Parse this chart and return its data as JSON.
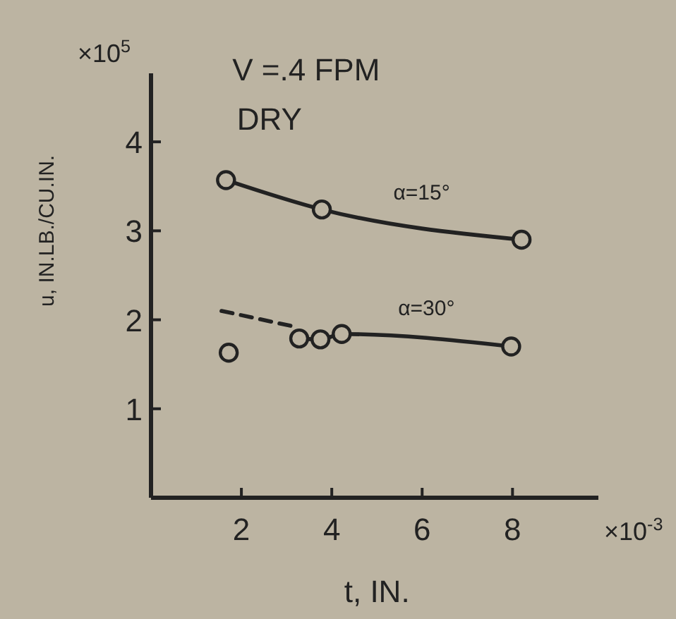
{
  "chart_data": {
    "type": "line",
    "title": "V =.4 FPM",
    "subtitle": "DRY",
    "xlabel": "t, IN.",
    "ylabel": "u, IN.LB./CU.IN.",
    "annotations": [
      "×10$^{5}$",
      "×10$^{-3}$"
    ],
    "xlim": [
      0,
      9.9
    ],
    "ylim": [
      0,
      4.77
    ],
    "xticks": [
      2,
      4,
      6,
      8
    ],
    "yticks": [
      1,
      2,
      3,
      4
    ],
    "grid": false,
    "series": [
      {
        "name": "α=15°",
        "color": "#222222",
        "x": [
          1.66,
          3.78,
          8.2
        ],
        "values": [
          3.57,
          3.24,
          2.9
        ],
        "marker": "circle",
        "line_style": "solid"
      },
      {
        "name": "α=30°",
        "color": "#222222",
        "x": [
          3.28,
          3.75,
          4.22,
          7.97
        ],
        "values": [
          1.79,
          1.78,
          1.84,
          1.7
        ],
        "marker": "circle",
        "line_style": "solid"
      },
      {
        "color": "#222222",
        "x": [
          1.56,
          3.2
        ],
        "values": [
          2.1,
          1.92
        ],
        "marker": "none",
        "line_style": "dashed"
      },
      {
        "type": "scatter",
        "color": "#222222",
        "x": [
          1.72
        ],
        "values": [
          1.63
        ],
        "marker": "circle"
      }
    ]
  }
}
